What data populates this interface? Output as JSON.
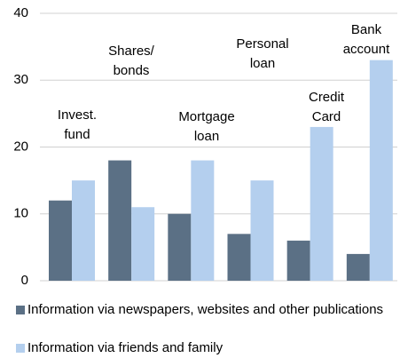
{
  "chart_data": {
    "type": "bar",
    "categories": [
      [
        "Invest.",
        "fund"
      ],
      [
        "Shares/",
        "bonds"
      ],
      [
        "Mortgage",
        "loan"
      ],
      [
        "Personal",
        "loan"
      ],
      [
        "Credit",
        "Card"
      ],
      [
        "Bank",
        "account"
      ]
    ],
    "series": [
      {
        "name": "Information via newspapers, websites and other publications",
        "color": "#5b7085",
        "values": [
          12,
          18,
          10,
          7,
          6,
          4
        ]
      },
      {
        "name": "Information via friends and family",
        "color": "#b4cfee",
        "values": [
          15,
          11,
          18,
          15,
          23,
          33
        ]
      }
    ],
    "ylim": [
      0,
      40
    ],
    "yticks": [
      0,
      10,
      20,
      30,
      40
    ],
    "grid": true
  }
}
